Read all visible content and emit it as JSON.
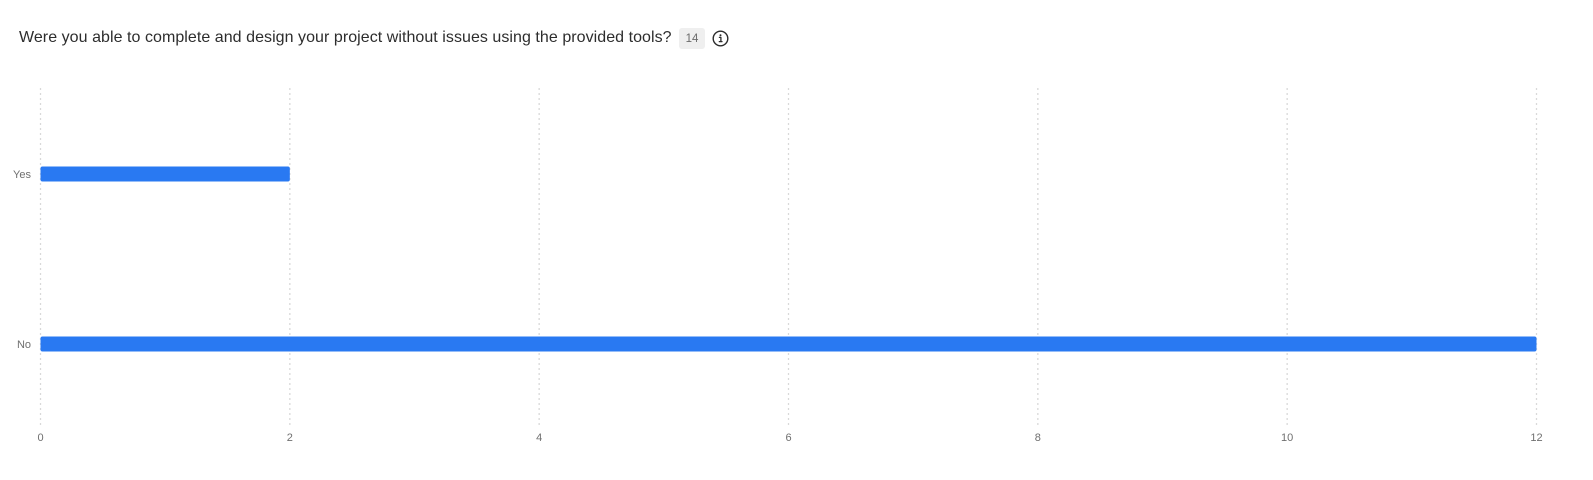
{
  "header": {
    "question": "Were you able to complete and design your project without issues using the provided tools?",
    "response_count": "14",
    "info_icon": "info-circle-icon"
  },
  "colors": {
    "bar": "#2979f2",
    "grid": "#d9d9d9"
  },
  "chart_data": {
    "type": "bar",
    "orientation": "horizontal",
    "categories": [
      "Yes",
      "No"
    ],
    "values": [
      2,
      12
    ],
    "xlim": [
      0,
      12
    ],
    "xticks": [
      0,
      2,
      4,
      6,
      8,
      10,
      12
    ],
    "grid": true,
    "title": "",
    "xlabel": "",
    "ylabel": ""
  }
}
